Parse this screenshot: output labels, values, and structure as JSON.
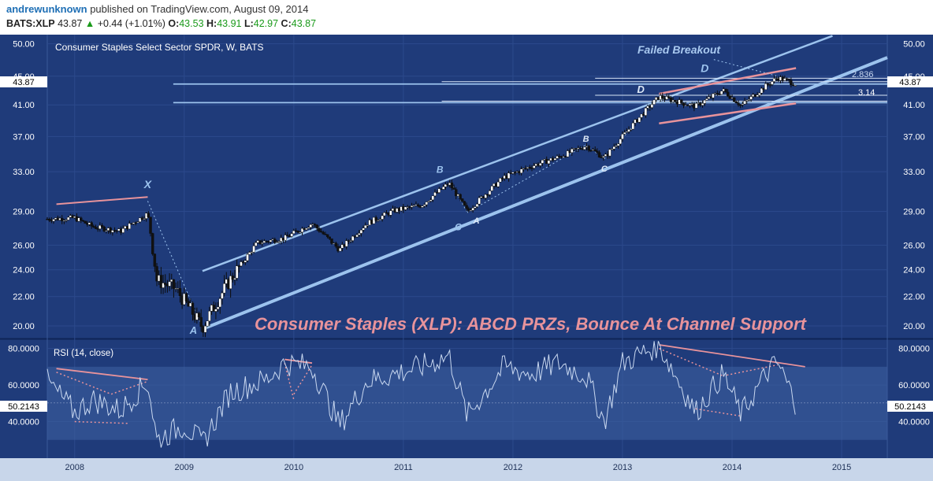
{
  "header": {
    "author": "andrewunknown",
    "published_text": "published on TradingView.com, August 09, 2014",
    "symbol": "BATS:XLP",
    "last": "43.87",
    "change_arrow": "▲",
    "change": "+0.44 (+1.01%)",
    "open_label": "O:",
    "open": "43.53",
    "high_label": "H:",
    "high": "43.91",
    "low_label": "L:",
    "low": "42.97",
    "close_label": "C:",
    "close": "43.87"
  },
  "colors": {
    "background": "#1f3b7a",
    "grid": "#2c4a8c",
    "channel": "#9cc3ee",
    "resistance": "#e8939b",
    "rsi_line": "#c9d8f0",
    "up_candle": "#ffffff",
    "down_candle": "#111111",
    "annotation_text": "#e8939b"
  },
  "chart_data": [
    {
      "type": "candlestick",
      "title": "Consumer Staples Select Sector SPDR, W, BATS",
      "timeframe": "W",
      "price_axis_ticks": [
        "50.00",
        "45.00",
        "41.00",
        "37.00",
        "33.00",
        "29.00",
        "26.00",
        "24.00",
        "22.00",
        "20.00"
      ],
      "scale": "log",
      "ylim": [
        19.2,
        51.5
      ],
      "x_axis_ticks": [
        "2008",
        "2009",
        "2010",
        "2011",
        "2012",
        "2013",
        "2014",
        "2015"
      ],
      "xlim": [
        "2007-10",
        "2015-06"
      ],
      "last_price_label": "43.87",
      "grid": true,
      "approx_weekly_closes": {
        "2007-10": 28.3,
        "2008-01": 28.4,
        "2008-03": 27.6,
        "2008-06": 27.2,
        "2008-09": 28.8,
        "2008-10": 23.2,
        "2008-12": 22.6,
        "2009-03": 19.9,
        "2009-06": 23.2,
        "2009-09": 26.2,
        "2009-12": 26.6,
        "2010-03": 27.9,
        "2010-06": 25.6,
        "2010-09": 27.9,
        "2010-12": 29.1,
        "2011-03": 29.6,
        "2011-06": 31.8,
        "2011-08": 29.0,
        "2011-12": 32.4,
        "2012-03": 33.6,
        "2012-06": 34.6,
        "2012-09": 35.9,
        "2012-11": 34.5,
        "2013-01": 37.0,
        "2013-05": 42.1,
        "2013-09": 40.8,
        "2013-12": 43.0,
        "2014-02": 40.9,
        "2014-05": 43.9,
        "2014-06": 44.8,
        "2014-08": 43.87
      },
      "pattern_labels": [
        "X",
        "A",
        "B",
        "C",
        "B",
        "C",
        "A",
        "D",
        "D"
      ],
      "level_labels": [
        "2.836",
        "3.14"
      ],
      "annotations": [
        "Failed Breakout",
        "Consumer Staples (XLP): ABCD PRZs, Bounce At Channel Support"
      ]
    },
    {
      "type": "line",
      "title": "RSI (14, close)",
      "y_axis_ticks": [
        "80.0000",
        "60.0000",
        "40.0000"
      ],
      "ylim": [
        20,
        85
      ],
      "band": [
        30,
        70
      ],
      "last_value_label": "50.2143",
      "approx_values": {
        "2007-10": 62,
        "2008-01": 45,
        "2008-03": 52,
        "2008-06": 46,
        "2008-09": 62,
        "2008-10": 30,
        "2009-01": 38,
        "2009-03": 28,
        "2009-06": 56,
        "2009-10": 63,
        "2009-12": 72,
        "2010-03": 70,
        "2010-06": 38,
        "2010-09": 62,
        "2010-12": 66,
        "2011-03": 70,
        "2011-06": 76,
        "2011-08": 43,
        "2011-12": 70,
        "2012-03": 66,
        "2012-06": 72,
        "2012-09": 65,
        "2012-11": 40,
        "2013-01": 72,
        "2013-05": 82,
        "2013-09": 45,
        "2013-12": 66,
        "2014-02": 44,
        "2014-05": 68,
        "2014-06": 72,
        "2014-08": 50
      }
    }
  ]
}
